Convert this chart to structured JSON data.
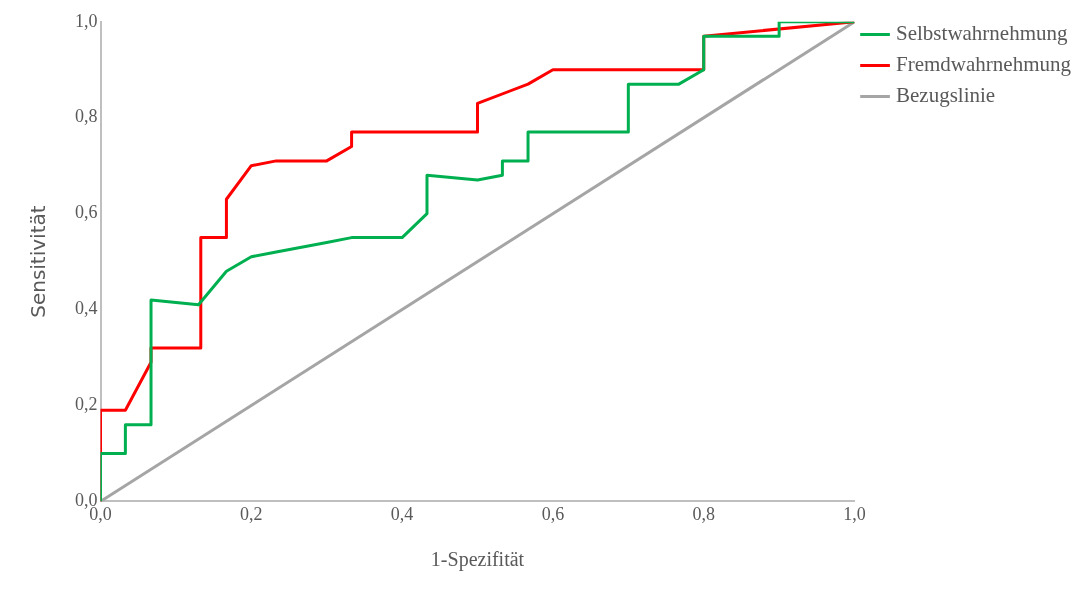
{
  "chart_data": {
    "type": "line",
    "xlabel": "1-Spezifität",
    "ylabel": "Sensitivität",
    "xlim": [
      0,
      1
    ],
    "ylim": [
      0,
      1
    ],
    "xticks": [
      {
        "value": 0,
        "label": "0,0"
      },
      {
        "value": 0.2,
        "label": "0,2"
      },
      {
        "value": 0.4,
        "label": "0,4"
      },
      {
        "value": 0.6,
        "label": "0,6"
      },
      {
        "value": 0.8,
        "label": "0,8"
      },
      {
        "value": 1,
        "label": "1,0"
      }
    ],
    "yticks": [
      {
        "value": 0,
        "label": "0,0"
      },
      {
        "value": 0.2,
        "label": "0,2"
      },
      {
        "value": 0.4,
        "label": "0,4"
      },
      {
        "value": 0.6,
        "label": "0,6"
      },
      {
        "value": 0.8,
        "label": "0,8"
      },
      {
        "value": 1,
        "label": "1,0"
      }
    ],
    "grid": false,
    "legend": "top right",
    "marker": "none",
    "line_style": "solid",
    "series": [
      {
        "name": "Selbstwahrnehmung",
        "color": "#00b050",
        "x": [
          0,
          0,
          0.033,
          0.033,
          0.067,
          0.067,
          0.13,
          0.167,
          0.2,
          0.233,
          0.3,
          0.333,
          0.4,
          0.433,
          0.433,
          0.5,
          0.533,
          0.533,
          0.567,
          0.567,
          0.7,
          0.7,
          0.767,
          0.8,
          0.8,
          0.9,
          0.9,
          1
        ],
        "values": [
          0,
          0.1,
          0.1,
          0.16,
          0.16,
          0.42,
          0.41,
          0.48,
          0.51,
          0.52,
          0.54,
          0.55,
          0.55,
          0.6,
          0.68,
          0.67,
          0.68,
          0.71,
          0.71,
          0.77,
          0.77,
          0.87,
          0.87,
          0.9,
          0.97,
          0.97,
          1,
          1
        ]
      },
      {
        "name": "Fremdwahrnehmung",
        "color": "#ff0000",
        "x": [
          0,
          0,
          0.033,
          0.067,
          0.067,
          0.133,
          0.133,
          0.167,
          0.167,
          0.2,
          0.233,
          0.3,
          0.333,
          0.333,
          0.5,
          0.5,
          0.567,
          0.6,
          0.8,
          0.8,
          1
        ],
        "values": [
          0,
          0.19,
          0.19,
          0.29,
          0.32,
          0.32,
          0.55,
          0.55,
          0.63,
          0.7,
          0.71,
          0.71,
          0.74,
          0.77,
          0.77,
          0.83,
          0.87,
          0.9,
          0.9,
          0.97,
          1
        ]
      },
      {
        "name": "Bezugslinie",
        "color": "#a5a5a5",
        "x": [
          0,
          1
        ],
        "values": [
          0,
          1
        ]
      }
    ]
  }
}
